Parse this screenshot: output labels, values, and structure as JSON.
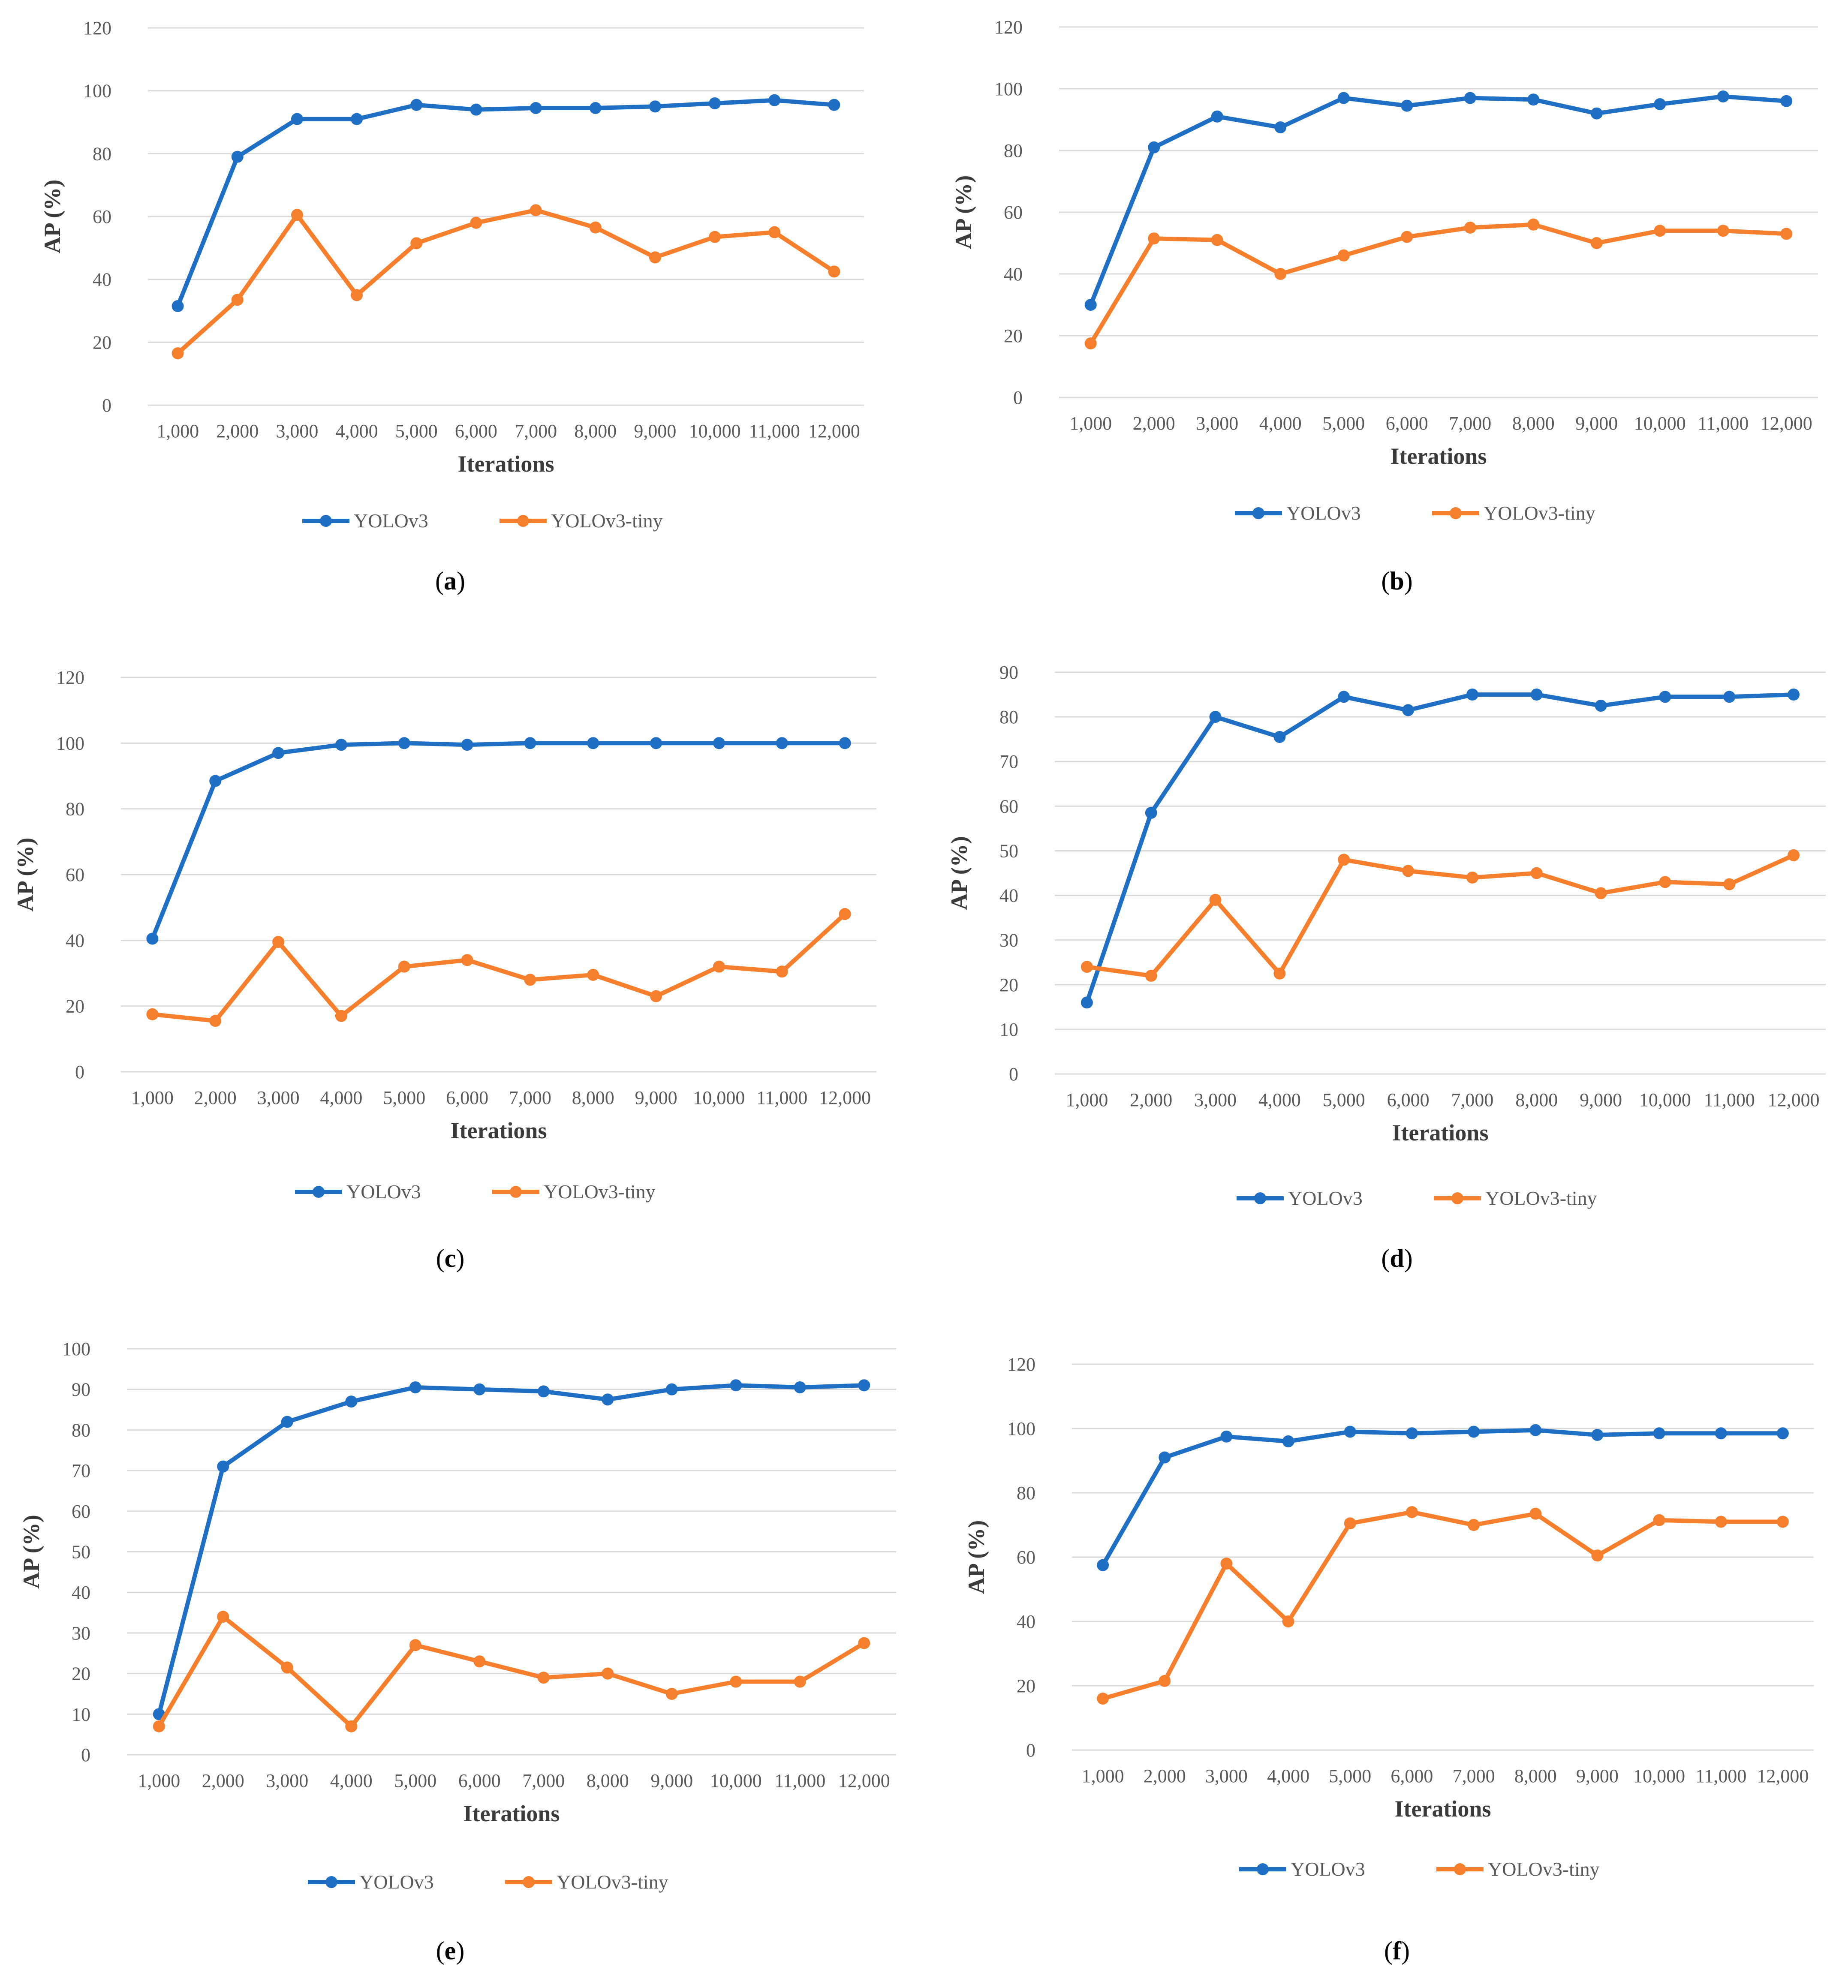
{
  "figure": {
    "colors": {
      "YOLOv3": "#1f6fc5",
      "YOLOv3-tiny": "#f57f2c",
      "grid": "#d9d9d9",
      "tick_text": "#595959"
    }
  },
  "chart_data": [
    {
      "type": "line",
      "panel": "a",
      "caption_letter": "a",
      "xlabel": "Iterations",
      "ylabel": "AP (%)",
      "ylim": [
        0,
        120
      ],
      "ystep": 20,
      "grid": true,
      "legend": "bottom",
      "categories": [
        "1,000",
        "2,000",
        "3,000",
        "4,000",
        "5,000",
        "6,000",
        "7,000",
        "8,000",
        "9,000",
        "10,000",
        "11,000",
        "12,000"
      ],
      "series": [
        {
          "name": "YOLOv3",
          "values": [
            31.5,
            79,
            91,
            91,
            95.5,
            94,
            94.5,
            94.5,
            95,
            96,
            97,
            95.5
          ]
        },
        {
          "name": "YOLOv3-tiny",
          "values": [
            16.5,
            33.5,
            60.5,
            35,
            51.5,
            58,
            62,
            56.5,
            47,
            53.5,
            55,
            42.5
          ]
        }
      ]
    },
    {
      "type": "line",
      "panel": "b",
      "caption_letter": "b",
      "xlabel": "Iterations",
      "ylabel": "AP (%)",
      "ylim": [
        0,
        120
      ],
      "ystep": 20,
      "grid": true,
      "legend": "bottom",
      "categories": [
        "1,000",
        "2,000",
        "3,000",
        "4,000",
        "5,000",
        "6,000",
        "7,000",
        "8,000",
        "9,000",
        "10,000",
        "11,000",
        "12,000"
      ],
      "series": [
        {
          "name": "YOLOv3",
          "values": [
            30,
            81,
            91,
            87.5,
            97,
            94.5,
            97,
            96.5,
            92,
            95,
            97.5,
            96
          ]
        },
        {
          "name": "YOLOv3-tiny",
          "values": [
            17.5,
            51.5,
            51,
            40,
            46,
            52,
            55,
            56,
            50,
            54,
            54,
            53
          ]
        }
      ]
    },
    {
      "type": "line",
      "panel": "c",
      "caption_letter": "c",
      "xlabel": "Iterations",
      "ylabel": "AP (%)",
      "ylim": [
        0,
        120
      ],
      "ystep": 20,
      "grid": true,
      "legend": "bottom",
      "categories": [
        "1,000",
        "2,000",
        "3,000",
        "4,000",
        "5,000",
        "6,000",
        "7,000",
        "8,000",
        "9,000",
        "10,000",
        "11,000",
        "12,000"
      ],
      "series": [
        {
          "name": "YOLOv3",
          "values": [
            40.5,
            88.5,
            97,
            99.5,
            100,
            99.5,
            100,
            100,
            100,
            100,
            100,
            100
          ]
        },
        {
          "name": "YOLOv3-tiny",
          "values": [
            17.5,
            15.5,
            39.5,
            17,
            32,
            34,
            28,
            29.5,
            23,
            32,
            30.5,
            48
          ]
        }
      ]
    },
    {
      "type": "line",
      "panel": "d",
      "caption_letter": "d",
      "xlabel": "Iterations",
      "ylabel": "AP (%)",
      "ylim": [
        0,
        90
      ],
      "ystep": 10,
      "grid": true,
      "legend": "bottom",
      "categories": [
        "1,000",
        "2,000",
        "3,000",
        "4,000",
        "5,000",
        "6,000",
        "7,000",
        "8,000",
        "9,000",
        "10,000",
        "11,000",
        "12,000"
      ],
      "series": [
        {
          "name": "YOLOv3",
          "values": [
            16,
            58.5,
            80,
            75.5,
            84.5,
            81.5,
            85,
            85,
            82.5,
            84.5,
            84.5,
            85
          ]
        },
        {
          "name": "YOLOv3-tiny",
          "values": [
            24,
            22,
            39,
            22.5,
            48,
            45.5,
            44,
            45,
            40.5,
            43,
            42.5,
            49
          ]
        }
      ]
    },
    {
      "type": "line",
      "panel": "e",
      "caption_letter": "e",
      "xlabel": "Iterations",
      "ylabel": "AP (%)",
      "ylim": [
        0,
        100
      ],
      "ystep": 10,
      "grid": true,
      "legend": "bottom",
      "categories": [
        "1,000",
        "2,000",
        "3,000",
        "4,000",
        "5,000",
        "6,000",
        "7,000",
        "8,000",
        "9,000",
        "10,000",
        "11,000",
        "12,000"
      ],
      "series": [
        {
          "name": "YOLOv3",
          "values": [
            10,
            71,
            82,
            87,
            90.5,
            90,
            89.5,
            87.5,
            90,
            91,
            90.5,
            91
          ]
        },
        {
          "name": "YOLOv3-tiny",
          "values": [
            7,
            34,
            21.5,
            7,
            27,
            23,
            19,
            20,
            15,
            18,
            18,
            27.5
          ]
        }
      ]
    },
    {
      "type": "line",
      "panel": "f",
      "caption_letter": "f",
      "xlabel": "Iterations",
      "ylabel": "AP (%)",
      "ylim": [
        0,
        120
      ],
      "ystep": 20,
      "grid": true,
      "legend": "bottom",
      "categories": [
        "1,000",
        "2,000",
        "3,000",
        "4,000",
        "5,000",
        "6,000",
        "7,000",
        "8,000",
        "9,000",
        "10,000",
        "11,000",
        "12,000"
      ],
      "series": [
        {
          "name": "YOLOv3",
          "values": [
            57.5,
            91,
            97.5,
            96,
            99,
            98.5,
            99,
            99.5,
            98,
            98.5,
            98.5,
            98.5
          ]
        },
        {
          "name": "YOLOv3-tiny",
          "values": [
            16,
            21.5,
            58,
            40,
            70.5,
            74,
            70,
            73.5,
            60.5,
            71.5,
            71,
            71
          ]
        }
      ]
    }
  ]
}
